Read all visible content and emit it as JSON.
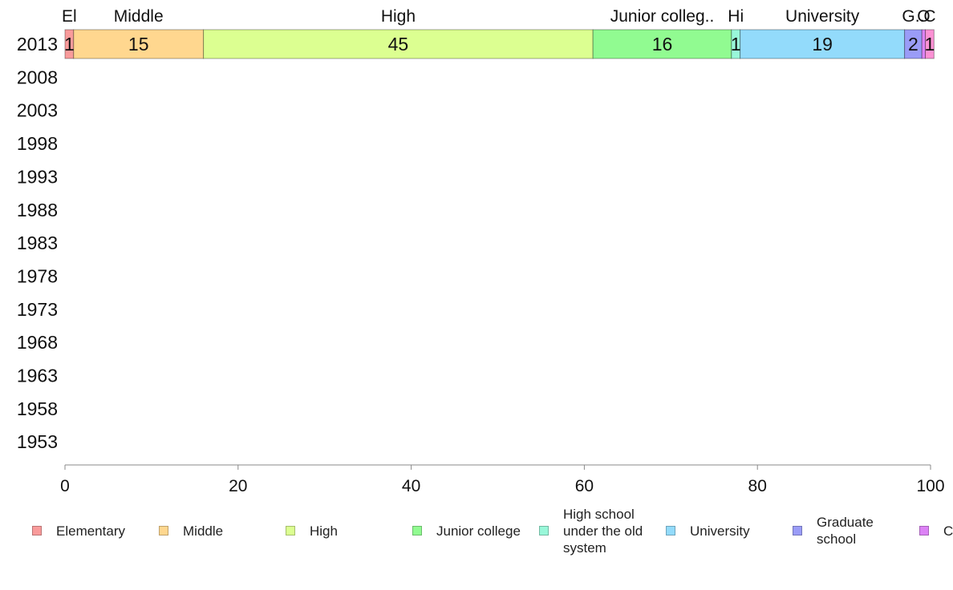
{
  "chart_data": {
    "type": "bar",
    "orientation": "horizontal",
    "stacked": true,
    "title": "",
    "xlabel": "",
    "ylabel": "",
    "xlim": [
      0,
      100
    ],
    "x_ticks": [
      "0",
      "20",
      "40",
      "60",
      "80",
      "100"
    ],
    "categories": [
      "2013",
      "2008",
      "2003",
      "1998",
      "1993",
      "1988",
      "1983",
      "1978",
      "1973",
      "1968",
      "1963",
      "1958",
      "1953"
    ],
    "grid": false,
    "legend_position": "bottom",
    "series": [
      {
        "name": "Elementary",
        "short_label": "El..",
        "color": "#f99b9b",
        "values": [
          1,
          null,
          null,
          null,
          null,
          null,
          null,
          null,
          null,
          null,
          null,
          null,
          null
        ]
      },
      {
        "name": "Middle",
        "short_label": "Middle",
        "color": "#ffd78f",
        "values": [
          15,
          null,
          null,
          null,
          null,
          null,
          null,
          null,
          null,
          null,
          null,
          null,
          null
        ]
      },
      {
        "name": "High",
        "short_label": "High",
        "color": "#dcff91",
        "values": [
          45,
          null,
          null,
          null,
          null,
          null,
          null,
          null,
          null,
          null,
          null,
          null,
          null
        ]
      },
      {
        "name": "Junior college",
        "short_label": "Junior colleg..",
        "color": "#91fb91",
        "values": [
          16,
          null,
          null,
          null,
          null,
          null,
          null,
          null,
          null,
          null,
          null,
          null,
          null
        ]
      },
      {
        "name": "High school under the old system",
        "short_label": "Hi..",
        "color": "#99f7d9",
        "values": [
          1,
          null,
          null,
          null,
          null,
          null,
          null,
          null,
          null,
          null,
          null,
          null,
          null
        ]
      },
      {
        "name": "University",
        "short_label": "University",
        "color": "#93dbfb",
        "values": [
          19,
          null,
          null,
          null,
          null,
          null,
          null,
          null,
          null,
          null,
          null,
          null,
          null
        ]
      },
      {
        "name": "Graduate school",
        "short_label": "G..",
        "color": "#9a9cf7",
        "values": [
          2,
          null,
          null,
          null,
          null,
          null,
          null,
          null,
          null,
          null,
          null,
          null,
          null
        ]
      },
      {
        "name": "C",
        "short_label": "O..",
        "color": "#dc82f5",
        "values": [
          0.4,
          null,
          null,
          null,
          null,
          null,
          null,
          null,
          null,
          null,
          null,
          null,
          null
        ]
      },
      {
        "name": "",
        "short_label": "Cu..",
        "color": "#fb91d4",
        "values": [
          1,
          null,
          null,
          null,
          null,
          null,
          null,
          null,
          null,
          null,
          null,
          null,
          null
        ]
      }
    ],
    "data_labels": [
      "1",
      "15",
      "45",
      "16",
      "1",
      "19",
      "2",
      "",
      "1"
    ]
  }
}
